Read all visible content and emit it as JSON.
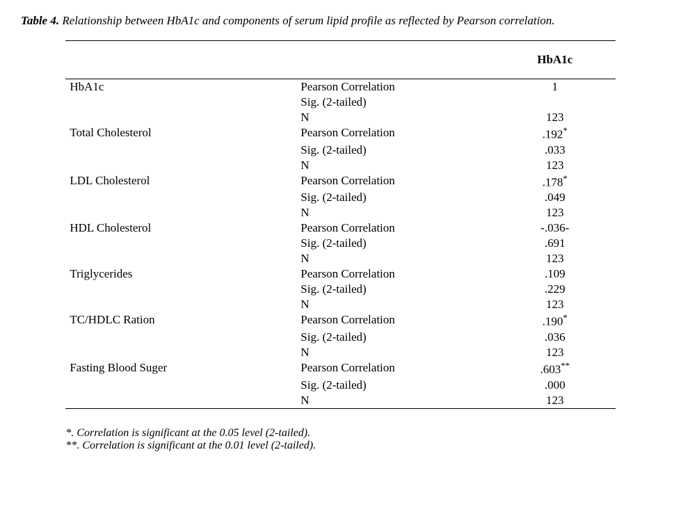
{
  "caption": {
    "label": "Table 4.",
    "text": "Relationship between HbA1c and components of serum lipid profile as reflected by Pearson correlation."
  },
  "header": {
    "col_value": "HbA1c"
  },
  "stat_labels": {
    "pearson": "Pearson Correlation",
    "sig": "Sig. (2-tailed)",
    "n": "N"
  },
  "rows": [
    {
      "variable": "HbA1c",
      "pearson": "1",
      "pearson_sup": "",
      "sig": "",
      "n": "123"
    },
    {
      "variable": "Total Cholesterol",
      "pearson": ".192",
      "pearson_sup": "*",
      "sig": ".033",
      "n": "123"
    },
    {
      "variable": "LDL Cholesterol",
      "pearson": ".178",
      "pearson_sup": "*",
      "sig": ".049",
      "n": "123"
    },
    {
      "variable": "HDL Cholesterol",
      "pearson": "-.036-",
      "pearson_sup": "",
      "sig": ".691",
      "n": "123"
    },
    {
      "variable": "Triglycerides",
      "pearson": ".109",
      "pearson_sup": "",
      "sig": ".229",
      "n": "123"
    },
    {
      "variable": "TC/HDLC Ration",
      "pearson": ".190",
      "pearson_sup": "*",
      "sig": ".036",
      "n": "123"
    },
    {
      "variable": "Fasting Blood Suger",
      "pearson": ".603",
      "pearson_sup": "**",
      "sig": ".000",
      "n": "123"
    }
  ],
  "footnotes": {
    "a": "*. Correlation is significant at the 0.05 level (2-tailed).",
    "b": "**. Correlation is significant at the 0.01 level (2-tailed)."
  },
  "style": {
    "font_family": "Times New Roman",
    "font_size_pt": 12,
    "text_color": "#000000",
    "background_color": "#ffffff",
    "rule_color": "#000000"
  }
}
